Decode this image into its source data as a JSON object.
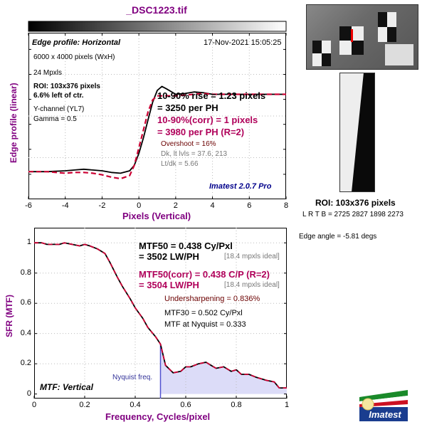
{
  "title": "_DSC1223.tif",
  "top_chart": {
    "header": "Edge profile: Horizontal",
    "date": "17-Nov-2021 15:05:25",
    "info_lines": [
      "6000 x 4000 pixels (WxH)",
      "24 Mpxls"
    ],
    "roi_lines": [
      "ROI: 103x376 pixels",
      "6.6% left of ctr."
    ],
    "channel_lines": [
      "Y-channel (YL7)",
      "Gamma = 0.5"
    ],
    "rise1": "10-90% rise = 1.23 pixels",
    "rise2": "= 3250 per PH",
    "rise_corr1": "10-90%(corr) = 1 pixels",
    "rise_corr2": "= 3980 per PH  (R=2)",
    "overshoot": "Overshoot = 16%",
    "dk": "Dk, lt lvls = 37.6, 213",
    "ltdk": "Lt/dk = 5.66",
    "version": "Imatest 2.0.7 Pro",
    "ylabel": "Edge profile (linear)",
    "xlabel": "Pixels (Vertical)",
    "xticks": [
      "-6",
      "-4",
      "-2",
      "0",
      "2",
      "4",
      "6",
      "8"
    ]
  },
  "bottom_chart": {
    "ylabel": "SFR (MTF)",
    "xlabel": "Frequency, Cycles/pixel",
    "xticks": [
      "0",
      "0.2",
      "0.4",
      "0.6",
      "0.8",
      "1"
    ],
    "yticks": [
      "0",
      "0.2",
      "0.4",
      "0.6",
      "0.8",
      "1"
    ],
    "mtf50_1": "MTF50 = 0.438 Cy/Pxl",
    "mtf50_2": "= 3502 LW/PH",
    "ideal1": "[18.4 mpxls ideal]",
    "mtf50c_1": "MTF50(corr) = 0.438 C/P  (R=2)",
    "mtf50c_2": "= 3504 LW/PH",
    "ideal2": "[18.4 mpxls ideal]",
    "undersharpening": "Undersharpening = 0.836%",
    "mtf30": "MTF30 = 0.502 Cy/Pxl",
    "mtf_nyq": "MTF at Nyquist = 0.333",
    "nyquist_label": "Nyquist freq.",
    "footer": "MTF: Vertical"
  },
  "side": {
    "roi": "ROI: 103x376 pixels",
    "lrtb": "L R  T B = 2725 2827  1898 2273",
    "edge_angle": "Edge angle = -5.81 degs",
    "logo": "Imatest"
  },
  "colors": {
    "purple": "#800080",
    "magenta": "#b0005a",
    "black_curve": "#000000",
    "red_curve": "#cc0033",
    "fill": "#dcdcf8",
    "nyquist_line": "#5050d0"
  },
  "chart_data": [
    {
      "type": "line",
      "title": "Edge profile: Horizontal",
      "xlabel": "Pixels (Vertical)",
      "ylabel": "Edge profile (linear)",
      "xlim": [
        -6,
        8
      ],
      "x": [
        -6,
        -5,
        -4,
        -3.5,
        -3,
        -2.5,
        -2,
        -1.5,
        -1,
        -0.5,
        -0.25,
        0,
        0.25,
        0.5,
        0.75,
        1,
        1.25,
        1.5,
        2,
        2.5,
        3,
        3.5,
        4,
        5,
        6,
        7,
        8
      ],
      "series": [
        {
          "name": "",
          "values": [
            0.02,
            0.02,
            0.03,
            0.04,
            0.05,
            0.04,
            0.03,
            0.01,
            0.0,
            0.03,
            0.1,
            0.25,
            0.45,
            0.68,
            0.9,
            1.05,
            1.1,
            1.07,
            1.0,
            1.01,
            1.03,
            1.02,
            1.0,
            1.0,
            1.0,
            1.0,
            1.0
          ]
        },
        {
          "name": "",
          "values": [
            0.02,
            0.02,
            0.0,
            0.01,
            0.01,
            0.0,
            -0.02,
            -0.05,
            -0.07,
            -0.03,
            0.1,
            0.32,
            0.55,
            0.78,
            0.93,
            0.98,
            0.98,
            0.98,
            0.98,
            0.99,
            1.0,
            1.01,
            1.0,
            1.0,
            1.0,
            1.0,
            1.0
          ]
        }
      ]
    },
    {
      "type": "line",
      "title": "MTF: Vertical",
      "xlabel": "Frequency, Cycles/pixel",
      "ylabel": "SFR (MTF)",
      "xlim": [
        0,
        1
      ],
      "ylim": [
        0,
        1.05
      ],
      "x": [
        0,
        0.03,
        0.05,
        0.08,
        0.1,
        0.12,
        0.15,
        0.18,
        0.2,
        0.22,
        0.25,
        0.28,
        0.3,
        0.33,
        0.35,
        0.38,
        0.4,
        0.43,
        0.45,
        0.48,
        0.5,
        0.52,
        0.55,
        0.58,
        0.6,
        0.62,
        0.65,
        0.68,
        0.7,
        0.72,
        0.75,
        0.78,
        0.8,
        0.82,
        0.85,
        0.88,
        0.9,
        0.92,
        0.95,
        0.97,
        1.0
      ],
      "series": [
        {
          "name": "",
          "values": [
            1.0,
            1.0,
            0.99,
            0.99,
            0.99,
            1.0,
            0.99,
            0.98,
            0.99,
            0.98,
            0.96,
            0.93,
            0.87,
            0.77,
            0.71,
            0.63,
            0.57,
            0.5,
            0.44,
            0.38,
            0.33,
            0.19,
            0.14,
            0.15,
            0.18,
            0.18,
            0.2,
            0.21,
            0.19,
            0.17,
            0.18,
            0.15,
            0.16,
            0.13,
            0.13,
            0.11,
            0.1,
            0.09,
            0.08,
            0.04,
            0.04
          ]
        }
      ],
      "nyquist": 0.5
    }
  ]
}
